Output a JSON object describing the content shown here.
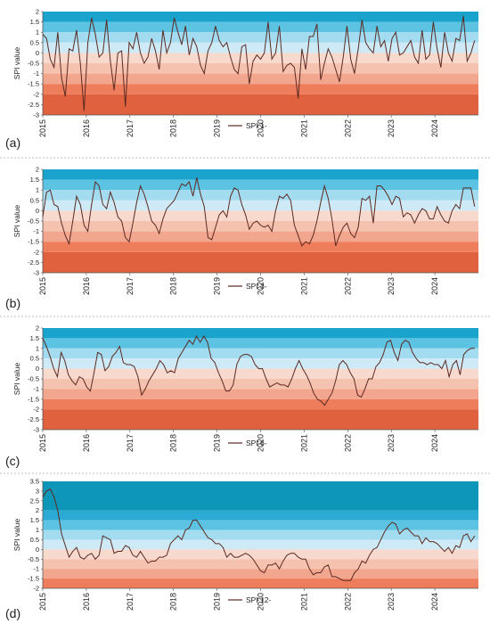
{
  "chart_data": [
    {
      "type": "line",
      "panel_label": "(a)",
      "ylabel": "SPI value",
      "legend": "SPI 1-",
      "ylim": [
        -3,
        2
      ],
      "yticks": [
        "-3",
        "-2.5",
        "-2",
        "-1.5",
        "-1",
        "-0.5",
        "0",
        "0.5",
        "1",
        "1.5",
        "2"
      ],
      "x_start": 2015,
      "x_end": 2025,
      "xticks": [
        "2015",
        "2016",
        "2017",
        "2018",
        "2019",
        "2020",
        "2021",
        "2022",
        "2023",
        "2024"
      ],
      "line_color": "#5b2a22",
      "bands": [
        {
          "from": 1.5,
          "to": 2,
          "color": "#1aa3cc"
        },
        {
          "from": 1,
          "to": 1.5,
          "color": "#5cc3e3"
        },
        {
          "from": 0.5,
          "to": 1,
          "color": "#a3dcf0"
        },
        {
          "from": 0,
          "to": 0.5,
          "color": "#cdeaf6"
        },
        {
          "from": -0.5,
          "to": 0,
          "color": "#f7d9ce"
        },
        {
          "from": -1,
          "to": -0.5,
          "color": "#f6c2b0"
        },
        {
          "from": -1.5,
          "to": -1,
          "color": "#f3a68e"
        },
        {
          "from": -2,
          "to": -1.5,
          "color": "#ee7d5c"
        },
        {
          "from": -3,
          "to": -2,
          "color": "#e0613e"
        }
      ],
      "series": [
        {
          "values": [
            0.9,
            0.7,
            -0.3,
            -0.7,
            1.0,
            -1.2,
            -2.1,
            0.2,
            0.1,
            1.1,
            -0.5,
            -2.8,
            0.5,
            1.7,
            0.9,
            -0.2,
            0.0,
            1.6,
            -0.4,
            -1.8,
            0.0,
            0.1,
            -2.6,
            0.5,
            0.2,
            1.0,
            0.0,
            -0.5,
            -0.2,
            0.7,
            0.1,
            -0.8,
            1.1,
            0.0,
            0.5,
            1.7,
            1.0,
            0.4,
            1.3,
            -0.1,
            0.7,
            0.3,
            -0.6,
            -1.0,
            0.1,
            0.5,
            1.3,
            0.6,
            0.3,
            0.5,
            -0.2,
            -0.8,
            -1.0,
            0.3,
            0.4,
            -1.5,
            -0.4,
            -0.1,
            -0.3,
            0.0,
            1.5,
            -0.3,
            0.0,
            1.3,
            -0.9,
            -0.6,
            -0.5,
            -0.7,
            -2.2,
            0.2,
            -0.8,
            0.8,
            0.8,
            1.4,
            -1.3,
            -0.5,
            0.2,
            -0.2,
            -0.8,
            -1.4,
            -0.2,
            1.3,
            -0.3,
            -1.0,
            0.2,
            1.6,
            0.5,
            0.2,
            0.0,
            1.3,
            0.3,
            0.6,
            -0.4,
            0.7,
            1.0,
            -0.1,
            0.0,
            0.3,
            0.6,
            -0.2,
            -0.5,
            1.1,
            -0.3,
            -0.1,
            1.5,
            0.2,
            -0.7,
            1.0,
            0.0,
            -0.4,
            0.7,
            0.6,
            1.8,
            -0.4,
            0.0,
            0.6
          ]
        }
      ]
    },
    {
      "type": "line",
      "panel_label": "(b)",
      "ylabel": "SPI value",
      "legend": "SPI 3-",
      "ylim": [
        -3,
        2
      ],
      "yticks": [
        "-3",
        "-2.5",
        "-2",
        "-1.5",
        "-1",
        "-0.5",
        "0",
        "0.5",
        "1",
        "1.5",
        "2"
      ],
      "x_start": 2015,
      "x_end": 2025,
      "xticks": [
        "2015",
        "2016",
        "2017",
        "2018",
        "2019",
        "2020",
        "2021",
        "2022",
        "2023",
        "2024"
      ],
      "line_color": "#5b2a22",
      "bands": [
        {
          "from": 1.5,
          "to": 2,
          "color": "#1aa3cc"
        },
        {
          "from": 1,
          "to": 1.5,
          "color": "#5cc3e3"
        },
        {
          "from": 0.5,
          "to": 1,
          "color": "#a3dcf0"
        },
        {
          "from": 0,
          "to": 0.5,
          "color": "#cdeaf6"
        },
        {
          "from": -0.5,
          "to": 0,
          "color": "#f7d9ce"
        },
        {
          "from": -1,
          "to": -0.5,
          "color": "#f6c2b0"
        },
        {
          "from": -1.5,
          "to": -1,
          "color": "#f3a68e"
        },
        {
          "from": -2,
          "to": -1.5,
          "color": "#ee7d5c"
        },
        {
          "from": -3,
          "to": -2,
          "color": "#e0613e"
        }
      ],
      "series": [
        {
          "values": [
            -0.3,
            0.9,
            1.0,
            0.3,
            0.2,
            -0.6,
            -1.2,
            -1.6,
            -0.5,
            0.7,
            0.3,
            -0.7,
            -1.0,
            0.3,
            1.4,
            1.2,
            0.3,
            0.1,
            0.9,
            0.4,
            -0.3,
            -0.5,
            -1.3,
            -1.5,
            -0.6,
            0.4,
            1.2,
            0.8,
            0.2,
            -0.5,
            -0.7,
            -1.1,
            -0.4,
            0.1,
            0.3,
            0.5,
            0.9,
            1.3,
            1.2,
            1.4,
            0.7,
            1.6,
            0.8,
            0.2,
            -1.3,
            -1.4,
            -0.8,
            -0.2,
            0.0,
            -0.3,
            0.7,
            1.1,
            1.0,
            0.3,
            -0.2,
            -0.9,
            -0.6,
            -0.5,
            -0.7,
            -0.8,
            -0.7,
            -1.0,
            0.0,
            0.7,
            0.6,
            0.8,
            0.5,
            -0.7,
            -1.2,
            -1.7,
            -1.5,
            -1.6,
            -1.2,
            -0.5,
            0.4,
            1.2,
            0.6,
            -0.4,
            -1.7,
            -1.2,
            -0.8,
            -0.6,
            -1.1,
            -1.3,
            -0.8,
            0.6,
            0.5,
            0.7,
            -0.6,
            1.2,
            1.2,
            1.0,
            0.7,
            0.3,
            0.7,
            0.6,
            -0.3,
            -0.1,
            -0.2,
            -0.6,
            -0.2,
            0.1,
            0.0,
            -0.4,
            -0.4,
            0.2,
            -0.2,
            -0.5,
            -0.6,
            0.0,
            0.3,
            0.1,
            1.1,
            1.1,
            1.1,
            0.2
          ]
        }
      ]
    },
    {
      "type": "line",
      "panel_label": "(c)",
      "ylabel": "SPI value",
      "legend": "SPI 6-",
      "ylim": [
        -3,
        2
      ],
      "yticks": [
        "-3",
        "-2.5",
        "-2",
        "-1.5",
        "-1",
        "-0.5",
        "0",
        "0.5",
        "1",
        "1.5",
        "2"
      ],
      "x_start": 2015,
      "x_end": 2025,
      "xticks": [
        "2015",
        "2016",
        "2017",
        "2018",
        "2019",
        "2020",
        "2021",
        "2022",
        "2023",
        "2024"
      ],
      "line_color": "#5b2a22",
      "bands": [
        {
          "from": 1.5,
          "to": 2,
          "color": "#1aa3cc"
        },
        {
          "from": 1,
          "to": 1.5,
          "color": "#5cc3e3"
        },
        {
          "from": 0.5,
          "to": 1,
          "color": "#a3dcf0"
        },
        {
          "from": 0,
          "to": 0.5,
          "color": "#cdeaf6"
        },
        {
          "from": -0.5,
          "to": 0,
          "color": "#f7d9ce"
        },
        {
          "from": -1,
          "to": -0.5,
          "color": "#f6c2b0"
        },
        {
          "from": -1.5,
          "to": -1,
          "color": "#f3a68e"
        },
        {
          "from": -2,
          "to": -1.5,
          "color": "#ee7d5c"
        },
        {
          "from": -3,
          "to": -2,
          "color": "#e0613e"
        }
      ],
      "series": [
        {
          "values": [
            1.5,
            1.1,
            0.6,
            0.0,
            -0.4,
            0.8,
            0.4,
            -0.3,
            -0.6,
            -0.8,
            -0.4,
            -0.5,
            -0.9,
            -1.1,
            -0.2,
            0.8,
            0.7,
            -0.1,
            0.1,
            0.6,
            0.8,
            1.1,
            0.3,
            0.2,
            0.2,
            0.1,
            -0.4,
            -1.3,
            -1.0,
            -0.6,
            -0.3,
            0.0,
            0.4,
            0.2,
            -0.2,
            -0.1,
            -0.2,
            0.5,
            0.8,
            1.1,
            1.4,
            1.2,
            1.6,
            1.3,
            1.6,
            1.3,
            0.5,
            0.3,
            -0.2,
            -0.6,
            -1.1,
            -1.1,
            -0.8,
            0.2,
            0.6,
            0.7,
            0.7,
            0.6,
            0.2,
            0.0,
            0.0,
            -0.5,
            -0.9,
            -0.8,
            -0.7,
            -0.8,
            -0.8,
            -0.9,
            -0.5,
            0.0,
            0.4,
            0.0,
            -0.3,
            -0.7,
            -1.2,
            -1.5,
            -1.6,
            -1.8,
            -1.5,
            -1.2,
            -0.6,
            0.2,
            0.4,
            0.2,
            -0.2,
            -0.5,
            -1.3,
            -1.4,
            -1.0,
            -0.5,
            -0.5,
            0.1,
            0.3,
            0.7,
            1.3,
            1.4,
            0.8,
            0.4,
            1.2,
            1.4,
            1.3,
            0.8,
            0.5,
            0.3,
            0.3,
            0.2,
            0.3,
            0.2,
            0.2,
            0.0,
            0.4,
            -0.4,
            0.2,
            0.4,
            -0.3,
            0.7,
            0.9,
            1.0,
            1.0
          ]
        }
      ]
    },
    {
      "type": "line",
      "panel_label": "(d)",
      "ylabel": "SPI value",
      "legend": "SPI 12-",
      "ylim": [
        -2,
        3.5
      ],
      "yticks": [
        "-2",
        "-1.5",
        "-1",
        "-0.5",
        "0",
        "0.5",
        "1",
        "1.5",
        "2",
        "2.5",
        "3",
        "3.5"
      ],
      "x_start": 2015,
      "x_end": 2025,
      "xticks": [
        "2015",
        "2016",
        "2017",
        "2018",
        "2019",
        "2020",
        "2021",
        "2022",
        "2023",
        "2024"
      ],
      "line_color": "#5b2a22",
      "bands": [
        {
          "from": 2,
          "to": 3.5,
          "color": "#0d96b8"
        },
        {
          "from": 1.5,
          "to": 2,
          "color": "#2aaad4"
        },
        {
          "from": 1,
          "to": 1.5,
          "color": "#5cc3e3"
        },
        {
          "from": 0.5,
          "to": 1,
          "color": "#a3dcf0"
        },
        {
          "from": 0,
          "to": 0.5,
          "color": "#cdeaf6"
        },
        {
          "from": -0.5,
          "to": 0,
          "color": "#f7d9ce"
        },
        {
          "from": -1,
          "to": -0.5,
          "color": "#f6c2b0"
        },
        {
          "from": -1.5,
          "to": -1,
          "color": "#f3a68e"
        },
        {
          "from": -2,
          "to": -1.5,
          "color": "#ee7d5c"
        }
      ],
      "series": [
        {
          "values": [
            2.7,
            3.0,
            3.1,
            2.7,
            2.0,
            0.8,
            0.2,
            -0.4,
            -0.1,
            0.1,
            -0.4,
            -0.5,
            -0.3,
            -0.2,
            -0.5,
            -0.3,
            0.7,
            0.6,
            0.5,
            -0.2,
            -0.1,
            -0.1,
            0.2,
            0.1,
            -0.3,
            -0.4,
            -0.1,
            -0.4,
            -0.7,
            -0.6,
            -0.6,
            -0.4,
            -0.4,
            -0.3,
            0.3,
            0.5,
            0.7,
            0.5,
            1.0,
            1.1,
            1.5,
            1.5,
            1.2,
            0.9,
            0.6,
            0.5,
            0.3,
            0.3,
            0.1,
            -0.4,
            -0.2,
            -0.4,
            -0.4,
            -0.3,
            -0.2,
            -0.3,
            -0.5,
            -0.8,
            -1.1,
            -1.2,
            -0.8,
            -0.8,
            -0.7,
            -1.0,
            -0.6,
            -0.3,
            -0.2,
            -0.2,
            -0.4,
            -0.5,
            -0.5,
            -1.0,
            -1.3,
            -1.2,
            -1.2,
            -0.9,
            -0.8,
            -1.4,
            -1.4,
            -1.5,
            -1.6,
            -1.6,
            -1.6,
            -1.2,
            -1.0,
            -0.6,
            -0.7,
            -0.3,
            0.0,
            0.1,
            0.5,
            0.9,
            1.2,
            1.4,
            1.3,
            0.8,
            1.0,
            1.1,
            0.9,
            0.7,
            0.7,
            0.3,
            0.6,
            0.4,
            0.4,
            0.3,
            0.1,
            -0.1,
            0.1,
            -0.2,
            0.2,
            0.1,
            0.7,
            0.8,
            0.4,
            0.7
          ]
        }
      ]
    }
  ]
}
